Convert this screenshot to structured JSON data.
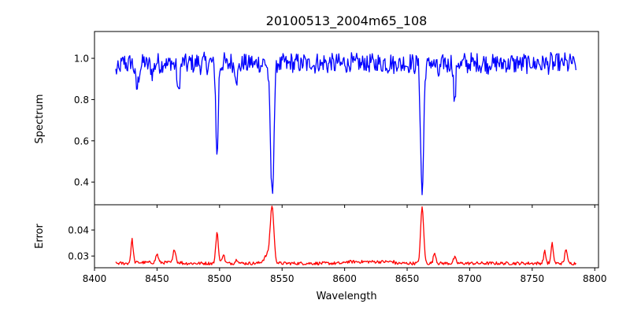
{
  "title": "20100513_2004m65_108",
  "colors": {
    "spectrum": "#0000ff",
    "error": "#ff0000",
    "axes": "#000000",
    "background": "#ffffff"
  },
  "chart_data": [
    {
      "type": "line",
      "name": "spectrum-panel",
      "title": "20100513_2004m65_108",
      "xlabel": "",
      "ylabel": "Spectrum",
      "xlim": [
        8400,
        8803
      ],
      "ylim": [
        0.29,
        1.13
      ],
      "xticks": [
        8400,
        8450,
        8500,
        8550,
        8600,
        8650,
        8700,
        8750,
        8800
      ],
      "yticks": [
        0.4,
        0.6,
        0.8,
        1.0
      ],
      "ytick_labels": [
        "0.4",
        "0.6",
        "0.8",
        "1.0"
      ],
      "grid": false,
      "x_range": [
        8417,
        8785
      ],
      "continuum": 0.975,
      "absorption_lines": [
        {
          "x": 8434,
          "depth": 0.13,
          "width": 1.2
        },
        {
          "x": 8446,
          "depth": 0.05,
          "width": 1.0
        },
        {
          "x": 8467,
          "depth": 0.16,
          "width": 0.9
        },
        {
          "x": 8498,
          "depth": 0.47,
          "width": 0.9
        },
        {
          "x": 8514,
          "depth": 0.08,
          "width": 1.0
        },
        {
          "x": 8542,
          "depth": 0.64,
          "width": 1.4
        },
        {
          "x": 8662,
          "depth": 0.63,
          "width": 1.2
        },
        {
          "x": 8675,
          "depth": 0.06,
          "width": 1.0
        },
        {
          "x": 8688,
          "depth": 0.19,
          "width": 0.8
        }
      ]
    },
    {
      "type": "line",
      "name": "error-panel",
      "xlabel": "Wavelength",
      "ylabel": "Error",
      "xlim": [
        8400,
        8803
      ],
      "ylim": [
        0.0255,
        0.0497
      ],
      "xticks": [
        8400,
        8450,
        8500,
        8550,
        8600,
        8650,
        8700,
        8750,
        8800
      ],
      "xtick_labels": [
        "8400",
        "8450",
        "8500",
        "8550",
        "8600",
        "8650",
        "8700",
        "8750",
        "8800"
      ],
      "yticks": [
        0.03,
        0.04
      ],
      "ytick_labels": [
        "0.03",
        "0.04"
      ],
      "grid": false,
      "x_range": [
        8417,
        8785
      ],
      "baseline": 0.0272,
      "emission_peaks": [
        {
          "x": 8430,
          "height": 0.0088,
          "width": 0.9
        },
        {
          "x": 8450,
          "height": 0.0032,
          "width": 1.0
        },
        {
          "x": 8464,
          "height": 0.0052,
          "width": 1.0
        },
        {
          "x": 8498,
          "height": 0.012,
          "width": 1.0
        },
        {
          "x": 8503,
          "height": 0.0035,
          "width": 1.0
        },
        {
          "x": 8514,
          "height": 0.0015,
          "width": 1.2
        },
        {
          "x": 8542,
          "height": 0.02,
          "width": 1.4
        },
        {
          "x": 8539,
          "height": 0.0035,
          "width": 3.0
        },
        {
          "x": 8662,
          "height": 0.0215,
          "width": 1.2
        },
        {
          "x": 8672,
          "height": 0.004,
          "width": 1.0
        },
        {
          "x": 8688,
          "height": 0.0022,
          "width": 1.0
        },
        {
          "x": 8760,
          "height": 0.0045,
          "width": 0.9
        },
        {
          "x": 8766,
          "height": 0.0075,
          "width": 0.9
        },
        {
          "x": 8777,
          "height": 0.0058,
          "width": 0.9
        }
      ]
    }
  ]
}
